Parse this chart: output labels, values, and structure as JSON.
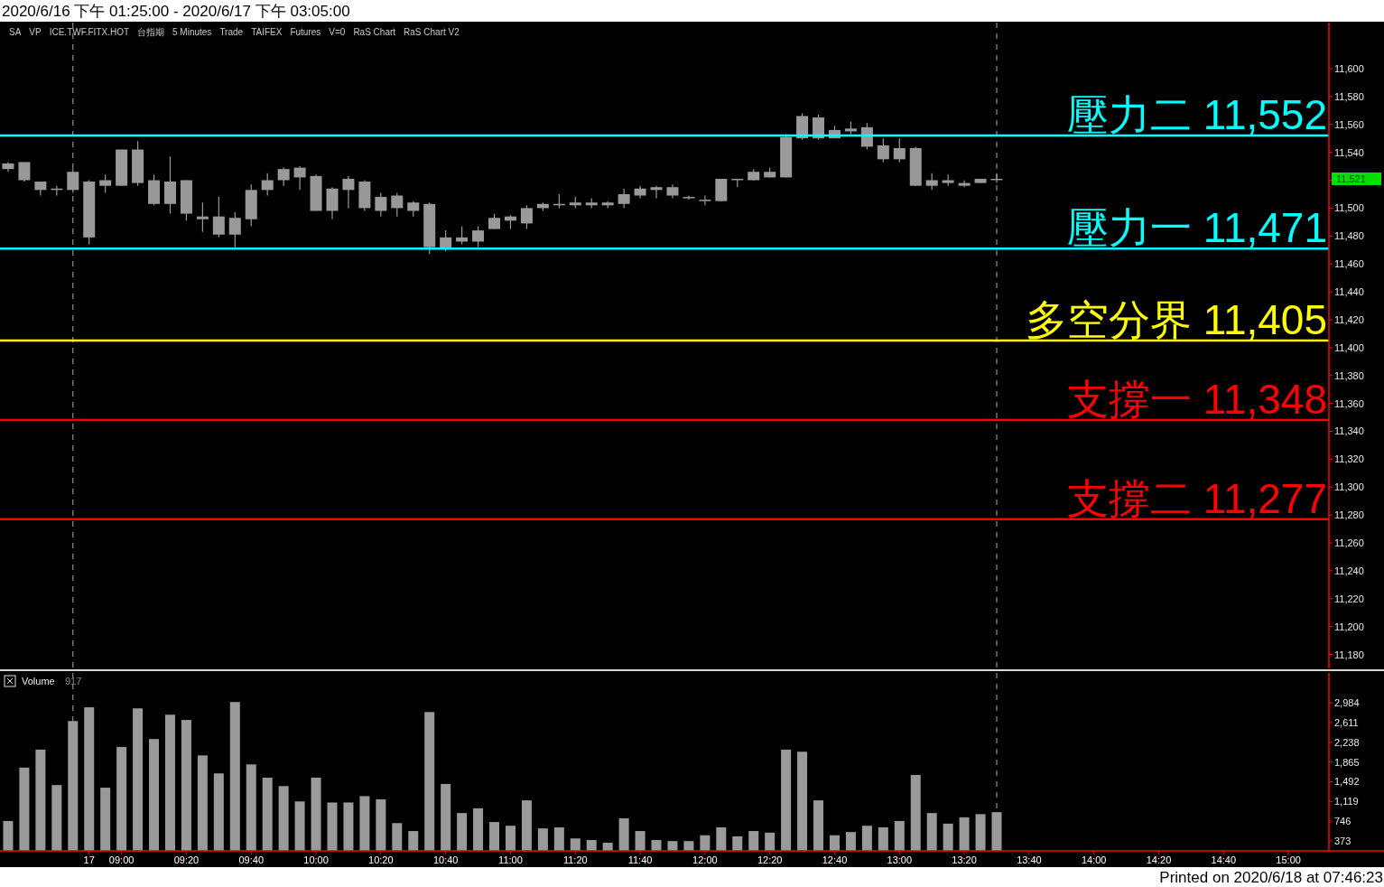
{
  "chart_data": [
    {
      "type": "candlestick",
      "title": "2020/6/16 下午 01:25:00 - 2020/6/17 下午 03:05:00",
      "colors": [
        "#9a9a9a",
        "#989898",
        "#989898",
        "#9a9a9a",
        "#9a9a9a",
        "#9a9a9a",
        "#9a9a9a",
        "#9a9a9a",
        "#989898",
        "#989898",
        "#9a9a9a",
        "#989898",
        "#989898",
        "#989898",
        "#9a9a9a",
        "#9a9a9a",
        "#9a9a9a",
        "#9a9a9a",
        "#989898",
        "#989898",
        "#9a9a9a",
        "#9a9a9a",
        "#989898",
        "#9a9a9a",
        "#989898",
        "#9a9a9a",
        "#989898",
        "#9a9a9a",
        "#989898",
        "#9a9a9a",
        "#9a9a9a",
        "#9a9a9a",
        "#9a9a9a",
        "#9a9a9a",
        "#989898",
        "#9a9a9a",
        "#989898",
        "#9a9a9a",
        "#9a9a9a",
        "#9a9a9a",
        "#9a9a9a",
        "#989898",
        "#989898",
        "#989898",
        "#9a9a9a",
        "#989898",
        "#9a9a9a",
        "#989898",
        "#9a9a9a",
        "#9a9a9a",
        "#989898",
        "#9a9a9a",
        "#9a9a9a",
        "#989898",
        "#989898",
        "#9a9a9a",
        "#989898",
        "#9a9a9a",
        "#989898",
        "#989898",
        "#9a9a9a",
        "#9a9a9a",
        null,
        null,
        null,
        null,
        null,
        null,
        null,
        null,
        null,
        null,
        null,
        null,
        null,
        null,
        null,
        null,
        null,
        null,
        null,
        null
      ],
      "tick_labels": "y",
      "annotations": [
        "SA",
        "VP",
        "ICE.TWF.FITX.HOT",
        "台指期",
        "5 Minutes",
        "Trade",
        "TAIFEX",
        "Futures",
        "V=0",
        "RaS Chart",
        "RaS Chart V2",
        "11,521"
      ],
      "categories": [
        null,
        null,
        null,
        null,
        null,
        null,
        null,
        null,
        null,
        null,
        null,
        null,
        null,
        null,
        null,
        null,
        null,
        null,
        null,
        null,
        null,
        null,
        null,
        null,
        null,
        null,
        null,
        null,
        null,
        null,
        null,
        null,
        null,
        null,
        null,
        null,
        null,
        null,
        null,
        null,
        null,
        null,
        null,
        null,
        null,
        null,
        null,
        null,
        null,
        null,
        null,
        null,
        null,
        null,
        null,
        null,
        null,
        null,
        null,
        null,
        null,
        null,
        null,
        null,
        null,
        null,
        null,
        null,
        null,
        null,
        null,
        null,
        null,
        null,
        null,
        null,
        null,
        null,
        null,
        null,
        null,
        null
      ],
      "ohlc": [
        [
          11528,
          11533,
          11526,
          11532
        ],
        [
          11533,
          11533,
          11519,
          11520
        ],
        [
          11519,
          11519,
          11509,
          11513
        ],
        [
          11513,
          11516,
          11509,
          11514
        ],
        [
          11513,
          11528,
          11511,
          11526
        ],
        [
          11479,
          11520,
          11474,
          11519
        ],
        [
          11516,
          11524,
          11511,
          11520
        ],
        [
          11516,
          11542,
          11516,
          11542
        ],
        [
          11542,
          11548,
          11516,
          11518
        ],
        [
          11520,
          11524,
          11502,
          11503
        ],
        [
          11503,
          11537,
          11496,
          11519
        ],
        [
          11520,
          11520,
          11491,
          11496
        ],
        [
          11494,
          11504,
          11483,
          11492
        ],
        [
          11494,
          11508,
          11479,
          11481
        ],
        [
          11481,
          11497,
          11472,
          11493
        ],
        [
          11492,
          11517,
          11487,
          11513
        ],
        [
          11513,
          11525,
          11509,
          11520
        ],
        [
          11520,
          11529,
          11516,
          11528
        ],
        [
          11529,
          11530,
          11513,
          11522
        ],
        [
          11523,
          11524,
          11498,
          11498
        ],
        [
          11498,
          11515,
          11492,
          11514
        ],
        [
          11513,
          11523,
          11500,
          11521
        ],
        [
          11519,
          11520,
          11498,
          11500
        ],
        [
          11498,
          11511,
          11494,
          11508
        ],
        [
          11509,
          11511,
          11494,
          11500
        ],
        [
          11498,
          11505,
          11494,
          11504
        ],
        [
          11503,
          11504,
          11467,
          11472
        ],
        [
          11471,
          11484,
          11469,
          11479
        ],
        [
          11479,
          11487,
          11474,
          11476
        ],
        [
          11476,
          11487,
          11472,
          11484
        ],
        [
          11485,
          11496,
          11485,
          11493
        ],
        [
          11491,
          11495,
          11485,
          11494
        ],
        [
          11489,
          11502,
          11485,
          11500
        ],
        [
          11500,
          11504,
          11498,
          11503
        ],
        [
          11503,
          11510,
          11500,
          11502
        ],
        [
          11502,
          11508,
          11500,
          11504
        ],
        [
          11504,
          11507,
          11500,
          11502
        ],
        [
          11502,
          11505,
          11500,
          11504
        ],
        [
          11503,
          11514,
          11500,
          11510
        ],
        [
          11509,
          11516,
          11507,
          11514
        ],
        [
          11513,
          11516,
          11507,
          11515
        ],
        [
          11515,
          11517,
          11507,
          11509
        ],
        [
          11508,
          11509,
          11506,
          11507
        ],
        [
          11506,
          11509,
          11502,
          11505
        ],
        [
          11505,
          11521,
          11505,
          11521
        ],
        [
          11521,
          11521,
          11515,
          11520
        ],
        [
          11520,
          11528,
          11520,
          11526
        ],
        [
          11526,
          11529,
          11522,
          11522
        ],
        [
          11522,
          11553,
          11522,
          11551
        ],
        [
          11550,
          11568,
          11549,
          11566
        ],
        [
          11565,
          11567,
          11549,
          11550
        ],
        [
          11550,
          11559,
          11550,
          11556
        ],
        [
          11555,
          11562,
          11553,
          11557
        ],
        [
          11558,
          11561,
          11542,
          11544
        ],
        [
          11545,
          11550,
          11533,
          11535
        ],
        [
          11535,
          11550,
          11533,
          11543
        ],
        [
          11543,
          11544,
          11516,
          11516
        ],
        [
          11516,
          11525,
          11513,
          11520
        ],
        [
          11520,
          11524,
          11516,
          11518
        ],
        [
          11518,
          11520,
          11515,
          11516
        ],
        [
          11518,
          11521,
          11518,
          11521
        ],
        [
          11521,
          11525,
          11518,
          11521
        ],
        null,
        null,
        null,
        null,
        null,
        null,
        null,
        null,
        null,
        null,
        null,
        null,
        null,
        null,
        null,
        null,
        null,
        null,
        null,
        null
      ],
      "ylim": [
        11170,
        11633
      ],
      "yticks": [
        {
          "value": 11180,
          "label": "11,180"
        },
        {
          "value": 11200,
          "label": "11,200"
        },
        {
          "value": 11220,
          "label": "11,220"
        },
        {
          "value": 11240,
          "label": "11,240"
        },
        {
          "value": 11260,
          "label": "11,260"
        },
        {
          "value": 11280,
          "label": "11,280"
        },
        {
          "value": 11300,
          "label": "11,300"
        },
        {
          "value": 11320,
          "label": "11,320"
        },
        {
          "value": 11340,
          "label": "11,340"
        },
        {
          "value": 11360,
          "label": "11,360"
        },
        {
          "value": 11380,
          "label": "11,380"
        },
        {
          "value": 11400,
          "label": "11,400"
        },
        {
          "value": 11420,
          "label": "11,420"
        },
        {
          "value": 11440,
          "label": "11,440"
        },
        {
          "value": 11460,
          "label": "11,460"
        },
        {
          "value": 11480,
          "label": "11,480"
        },
        {
          "value": 11500,
          "label": "11,500"
        },
        {
          "value": 11520,
          "label": null
        },
        {
          "value": 11540,
          "label": "11,540"
        },
        {
          "value": 11560,
          "label": "11,560"
        },
        {
          "value": 11580,
          "label": "11,580"
        },
        {
          "value": 11600,
          "label": "11,600"
        }
      ],
      "ref_lines": [
        {
          "axis": "y",
          "value": 11552,
          "label": "壓力二 11,552",
          "color": "#00ffff"
        },
        {
          "axis": "y",
          "value": 11471,
          "label": "壓力一 11,471",
          "color": "#00ffff"
        },
        {
          "axis": "y",
          "value": 11405,
          "label": "多空分界 11,405",
          "color": "#ffff00"
        },
        {
          "axis": "y",
          "value": 11348,
          "label": "支撐一 11,348",
          "color": "#ff0000"
        },
        {
          "axis": "y",
          "value": 11277,
          "label": "支撐二 11,277",
          "color": "#ff0000"
        }
      ]
    },
    {
      "type": "bar",
      "title": "Volume",
      "color": "#9a9a9a",
      "annotations": [
        "917",
        "Printed on 2020/6/18 at 07:46:23"
      ],
      "categories": [
        null,
        null,
        null,
        null,
        null,
        "17",
        null,
        "09:00",
        null,
        null,
        null,
        "09:20",
        null,
        null,
        null,
        "09:40",
        null,
        null,
        null,
        "10:00",
        null,
        null,
        null,
        "10:20",
        null,
        null,
        null,
        "10:40",
        null,
        null,
        null,
        "11:00",
        null,
        null,
        null,
        "11:20",
        null,
        null,
        null,
        "11:40",
        null,
        null,
        null,
        "12:00",
        null,
        null,
        null,
        "12:20",
        null,
        null,
        null,
        "12:40",
        null,
        null,
        null,
        "13:00",
        null,
        null,
        null,
        "13:20",
        null,
        null,
        null,
        "13:40",
        null,
        null,
        null,
        "14:00",
        null,
        null,
        null,
        "14:20",
        null,
        null,
        null,
        "14:40",
        null,
        null,
        null,
        "15:00",
        null,
        null
      ],
      "values": [
        750,
        1760,
        2100,
        1430,
        2640,
        2900,
        1380,
        2150,
        2880,
        2300,
        2760,
        2660,
        1990,
        1650,
        3000,
        1820,
        1570,
        1410,
        1120,
        1570,
        1100,
        1100,
        1220,
        1160,
        710,
        560,
        2810,
        1450,
        900,
        990,
        730,
        660,
        1140,
        610,
        630,
        420,
        390,
        340,
        800,
        560,
        390,
        370,
        370,
        480,
        630,
        460,
        560,
        530,
        2100,
        2060,
        1140,
        480,
        540,
        660,
        630,
        750,
        1620,
        900,
        700,
        820,
        880,
        917,
        null,
        null,
        null,
        null,
        null,
        null,
        null,
        null,
        null,
        null,
        null,
        null,
        null,
        null,
        null,
        null,
        null,
        null,
        null,
        null
      ],
      "ylim": [
        185,
        3550
      ],
      "yticks": [
        373,
        746,
        {
          "value": 1119,
          "label": "1,119"
        },
        {
          "value": 1492,
          "label": "1,492"
        },
        {
          "value": 1865,
          "label": "1,865"
        },
        {
          "value": 2238,
          "label": "2,238"
        },
        {
          "value": 2611,
          "label": "2,611"
        },
        {
          "value": 2984,
          "label": "2,984"
        }
      ]
    }
  ]
}
